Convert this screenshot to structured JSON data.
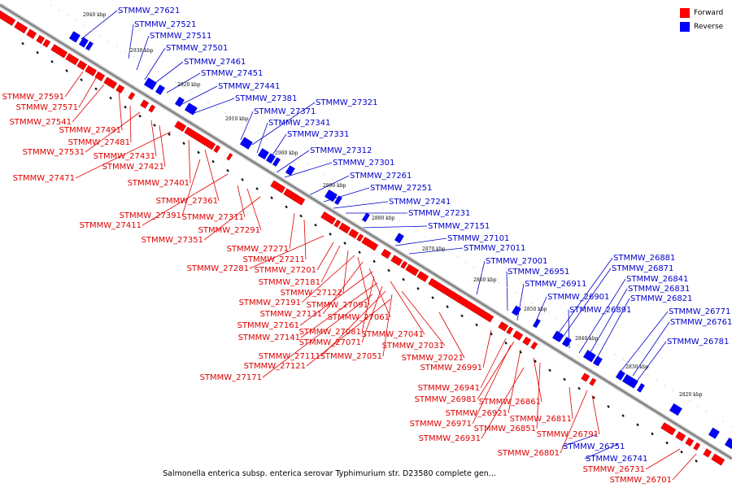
{
  "legend": {
    "forward_label": "Forward",
    "reverse_label": "Reverse",
    "forward_color": "#ff0000",
    "reverse_color": "#0000ff"
  },
  "caption": "Salmonella enterica subsp. enterica serovar Typhimurium str. D23580 complete gen...",
  "colors": {
    "backbone": "#808080",
    "text_forward": "#e00000",
    "text_reverse": "#0000cc"
  },
  "ticks": [
    "2940 kbp",
    "2930 kbp",
    "2920 kbp",
    "2910 kbp",
    "2900 kbp",
    "2890 kbp",
    "2880 kbp",
    "2870 kbp",
    "2860 kbp",
    "2850 kbp",
    "2840 kbp",
    "2830 kbp",
    "2820 kbp"
  ],
  "reverse_labels": [
    "STMMW_27621",
    "STMMW_27521",
    "STMMW_27511",
    "STMMW_27501",
    "STMMW_27461",
    "STMMW_27451",
    "STMMW_27441",
    "STMMW_27381",
    "STMMW_27321",
    "STMMW_27371",
    "STMMW_27341",
    "STMMW_27331",
    "STMMW_27312",
    "STMMW_27301",
    "STMMW_27261",
    "STMMW_27251",
    "STMMW_27241",
    "STMMW_27231",
    "STMMW_27151",
    "STMMW_27101",
    "STMMW_27011",
    "STMMW_27001",
    "STMMW_26951",
    "STMMW_26911",
    "STMMW_26881",
    "STMMW_26871",
    "STMMW_26841",
    "STMMW_26831",
    "STMMW_26821",
    "STMMW_26901",
    "STMMW_26891",
    "STMMW_26771",
    "STMMW_26761",
    "STMMW_26781",
    "STMMW_26751",
    "STMMW_26741"
  ],
  "forward_labels": [
    "STMMW_27591",
    "STMMW_27571",
    "STMMW_27541",
    "STMMW_27491",
    "STMMW_27481",
    "STMMW_27531",
    "STMMW_27431",
    "STMMW_27421",
    "STMMW_27471",
    "STMMW_27401",
    "STMMW_27361",
    "STMMW_27391",
    "STMMW_27411",
    "STMMW_27311",
    "STMMW_27291",
    "STMMW_27351",
    "STMMW_27271",
    "STMMW_27211",
    "STMMW_27281",
    "STMMW_27201",
    "STMMW_27181",
    "STMMW_27122",
    "STMMW_27191",
    "STMMW_27091",
    "STMMW_27131",
    "STMMW_27061",
    "STMMW_27161",
    "STMMW_27081",
    "STMMW_27041",
    "STMMW_27141",
    "STMMW_27071",
    "STMMW_27031",
    "STMMW_27111",
    "STMMW_27051",
    "STMMW_27121",
    "STMMW_27021",
    "STMMW_27171",
    "STMMW_26991",
    "STMMW_26941",
    "STMMW_26981",
    "STMMW_26861",
    "STMMW_26921",
    "STMMW_26971",
    "STMMW_26851",
    "STMMW_26811",
    "STMMW_26931",
    "STMMW_26791",
    "STMMW_26801",
    "STMMW_26731",
    "STMMW_26701"
  ]
}
